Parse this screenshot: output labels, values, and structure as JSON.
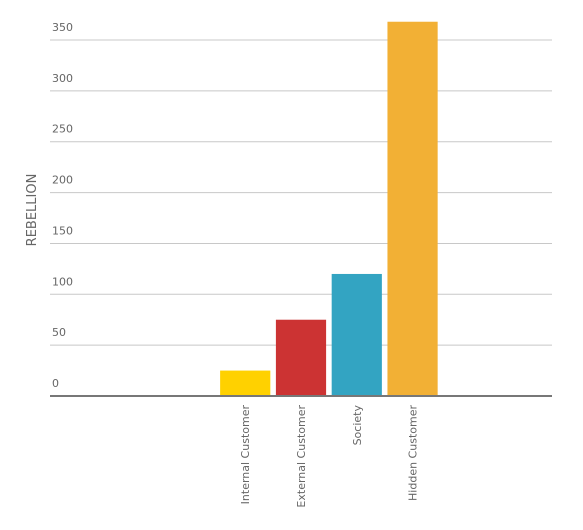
{
  "chart_data": {
    "type": "bar",
    "y_label": "REBELLION",
    "categories": [
      null,
      null,
      null,
      "Internal Customer",
      "External Customer",
      "Society",
      "Hidden Customer",
      null,
      null
    ],
    "values": [
      null,
      null,
      null,
      25,
      75,
      120,
      368,
      null,
      null
    ],
    "colors": [
      null,
      null,
      null,
      "#ffd100",
      "#cc3333",
      "#33a4c2",
      "#f2b035",
      null,
      null
    ],
    "ylim": [
      0,
      370
    ],
    "yticks": [
      0,
      50,
      100,
      150,
      200,
      250,
      300,
      350
    ],
    "grid": true
  }
}
